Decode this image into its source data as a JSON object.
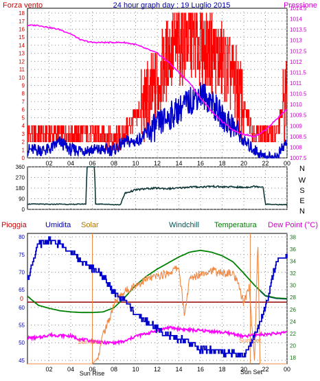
{
  "chart_data": [
    {
      "type": "line",
      "title": "24 hour graph day : 19 Luglio 2015",
      "left_label": "Forza vento",
      "right_label": "Pressione",
      "x_ticks": [
        "02",
        "04",
        "06",
        "08",
        "10",
        "12",
        "14",
        "16",
        "18",
        "20",
        "22",
        "00"
      ],
      "y_left_ticks": [
        "0",
        "1",
        "2",
        "3",
        "4",
        "5",
        "6",
        "7",
        "8",
        "9",
        "10",
        "11",
        "12",
        "13",
        "14",
        "15",
        "16",
        "17",
        "18"
      ],
      "y_right_ticks": [
        "1007.5",
        "1008",
        "1008.5",
        "1009",
        "1009.5",
        "1010",
        "1010.5",
        "1011",
        "1011.5",
        "1012",
        "1012.5",
        "1013",
        "1013.5",
        "1014",
        "1014.5"
      ],
      "ylim_left": [
        0,
        18.6
      ],
      "ylim_right": [
        1007.5,
        1014.5
      ],
      "xlim_hours": [
        0,
        24
      ],
      "colors": {
        "gust": "#ff0000",
        "wind": "#0000cc",
        "pressure": "#ff00ff"
      },
      "series": [
        {
          "key": "gust",
          "color": "#ff0000",
          "x": [
            0,
            1,
            2,
            3,
            4,
            5,
            6,
            7,
            8,
            9,
            10,
            11,
            12,
            13,
            14,
            15,
            16,
            17,
            18,
            19,
            20,
            21,
            22,
            23,
            24
          ],
          "values": [
            3,
            3,
            3,
            3,
            3,
            3,
            3,
            3,
            2,
            3,
            5,
            7,
            9,
            13,
            14,
            15,
            14,
            13,
            12,
            10,
            6,
            3,
            3,
            3,
            8
          ]
        },
        {
          "key": "wind",
          "color": "#0000cc",
          "x": [
            0,
            1,
            2,
            3,
            4,
            5,
            6,
            7,
            8,
            9,
            10,
            11,
            12,
            13,
            14,
            15,
            16,
            17,
            18,
            19,
            20,
            21,
            22,
            23,
            24
          ],
          "values": [
            1,
            1,
            1,
            2,
            1,
            1,
            1,
            1,
            1,
            2,
            2,
            3,
            4,
            5,
            6,
            7,
            8,
            7,
            5,
            4,
            2,
            1,
            0,
            0,
            2
          ]
        },
        {
          "key": "pressure",
          "color": "#ff00ff",
          "x": [
            0,
            1,
            2,
            3,
            4,
            5,
            6,
            7,
            8,
            9,
            10,
            11,
            12,
            13,
            14,
            15,
            16,
            17,
            18,
            19,
            20,
            21,
            22,
            23,
            24
          ],
          "values": [
            1013.7,
            1013.7,
            1013.6,
            1013.5,
            1013.3,
            1013.0,
            1012.9,
            1012.9,
            1012.9,
            1012.9,
            1012.8,
            1012.6,
            1012.4,
            1012.0,
            1011.5,
            1011.0,
            1010.3,
            1009.7,
            1009.2,
            1008.8,
            1008.6,
            1008.5,
            1008.8,
            1009.3,
            1009.8
          ]
        }
      ]
    },
    {
      "type": "line",
      "title": "",
      "y_ticks": [
        "0",
        "90",
        "180",
        "270",
        "360"
      ],
      "compass": [
        "N",
        "W",
        "S",
        "E",
        "N"
      ],
      "ylim": [
        0,
        360
      ],
      "xlim_hours": [
        0,
        24
      ],
      "colors": {
        "direction": "#103838"
      },
      "series": [
        {
          "key": "direction",
          "color": "#103838",
          "x": [
            0,
            1,
            2,
            3,
            4,
            5,
            5.4,
            5.5,
            6.2,
            6.3,
            7,
            8,
            8.6,
            9,
            10,
            11,
            12,
            13,
            14,
            15,
            16,
            17,
            18,
            19,
            20,
            21,
            21.8,
            22,
            23,
            24
          ],
          "values": [
            45,
            45,
            42,
            45,
            42,
            45,
            45,
            360,
            360,
            45,
            45,
            40,
            40,
            135,
            165,
            175,
            180,
            175,
            180,
            190,
            190,
            195,
            190,
            190,
            185,
            195,
            190,
            45,
            40,
            40
          ]
        }
      ]
    },
    {
      "type": "line",
      "title": "",
      "series_labels": [
        "Pioggia",
        "Umidita",
        "Solar",
        "Windchill",
        "Temperatura",
        "Dew Point (°C)"
      ],
      "y_left_ticks": [
        "45",
        "50",
        "55",
        "60",
        "65",
        "70",
        "75",
        "80"
      ],
      "y_right_ticks": [
        "18",
        "20",
        "22",
        "24",
        "26",
        "28",
        "30",
        "32",
        "34",
        "36",
        "38"
      ],
      "ylim_left": [
        44,
        81
      ],
      "ylim_right": [
        17,
        38.6
      ],
      "rain_marker": "0",
      "annotations": [
        "Sun Rise",
        "Sun Set"
      ],
      "xlim_hours": [
        0,
        24
      ],
      "colors": {
        "rain": "#990000",
        "humidity": "#0000cc",
        "solar": "#ee8844",
        "windchill": "#005555",
        "temperature": "#008000",
        "dewpoint": "#ff00ff"
      },
      "series": [
        {
          "key": "humidity",
          "color": "#0000cc",
          "x": [
            0,
            1,
            2,
            3,
            4,
            5,
            6,
            7,
            8,
            9,
            10,
            11,
            12,
            13,
            14,
            15,
            16,
            17,
            18,
            19,
            20,
            21,
            22,
            23,
            24
          ],
          "values": [
            68,
            78,
            79,
            78,
            76,
            73,
            71,
            69,
            64,
            62,
            58,
            56,
            54,
            52,
            51,
            50,
            48,
            48,
            47,
            47,
            46,
            52,
            60,
            73,
            75
          ]
        },
        {
          "key": "solar",
          "color": "#ee8844",
          "x": [
            0,
            1,
            2,
            3,
            4,
            5,
            6,
            6.5,
            7,
            7.5,
            8,
            9,
            10,
            11,
            12,
            13,
            14,
            14.5,
            15,
            16,
            17,
            18,
            19,
            19.5,
            20,
            20.5,
            21,
            21.3,
            21.5,
            22,
            23,
            24
          ],
          "values": [
            17,
            17,
            17,
            17,
            17,
            17,
            17,
            18,
            22,
            24,
            27,
            29,
            30,
            31,
            31.5,
            32,
            33,
            25,
            31,
            32,
            32.5,
            32,
            32,
            30,
            27,
            30,
            17,
            38,
            17,
            17,
            17,
            17
          ]
        },
        {
          "key": "temperature",
          "color": "#008000",
          "x": [
            0,
            1,
            2,
            3,
            4,
            5,
            6,
            7,
            8,
            9,
            10,
            11,
            12,
            13,
            14,
            15,
            16,
            17,
            18,
            19,
            20,
            21,
            22,
            23,
            24
          ],
          "values": [
            28.2,
            26.7,
            26.2,
            25.8,
            25.6,
            25.5,
            25.5,
            25.6,
            26.3,
            28.0,
            30.0,
            31.5,
            32.7,
            33.7,
            34.7,
            35.5,
            35.8,
            35.5,
            34.9,
            33.9,
            32.0,
            30.0,
            28.3,
            27.9,
            27.8
          ]
        },
        {
          "key": "dewpoint",
          "color": "#ff00ff",
          "x": [
            0,
            1,
            2,
            3,
            4,
            5,
            6,
            7,
            8,
            9,
            10,
            11,
            12,
            13,
            14,
            15,
            16,
            17,
            18,
            19,
            20,
            21,
            22,
            23,
            24
          ],
          "values": [
            21.3,
            21.3,
            21.8,
            21.7,
            21.6,
            21.0,
            20.8,
            20.5,
            20.5,
            20.7,
            21.6,
            22.0,
            22.5,
            23.0,
            22.8,
            22.6,
            22.5,
            22.4,
            22.2,
            22.0,
            21.5,
            21.8,
            21.9,
            22.0,
            22.3
          ]
        }
      ]
    }
  ]
}
